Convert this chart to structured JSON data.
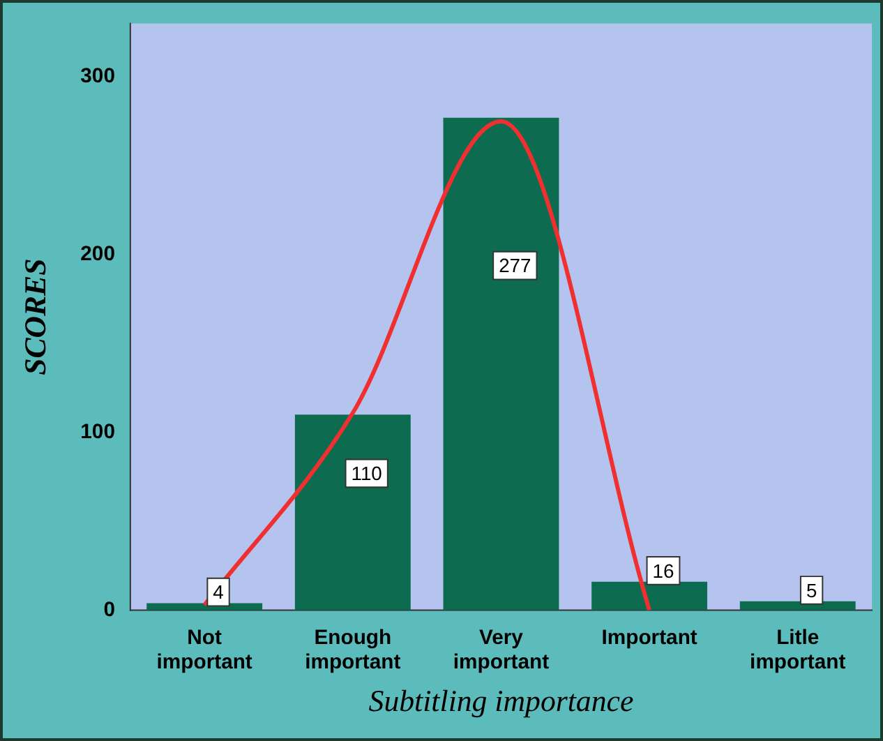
{
  "chart_data": {
    "type": "bar",
    "xlabel": "Subtitling importance",
    "ylabel": "SCORES",
    "categories": [
      "Not important",
      "Enough important",
      "Very important",
      "Important",
      "Litle important"
    ],
    "series": [
      {
        "color": "#0d6b4f",
        "values": [
          4,
          110,
          277,
          16,
          5
        ],
        "value_labels": [
          "4",
          "110",
          "277",
          "16",
          "5"
        ]
      },
      {
        "type": "line",
        "color": "#f03030",
        "values": [
          3,
          111,
          275,
          0,
          null
        ]
      }
    ],
    "ylim": [
      0,
      330
    ],
    "yticks": [
      0,
      100,
      200,
      300
    ],
    "grid": false,
    "legend": false,
    "marker": "none",
    "line_style": "solid"
  }
}
